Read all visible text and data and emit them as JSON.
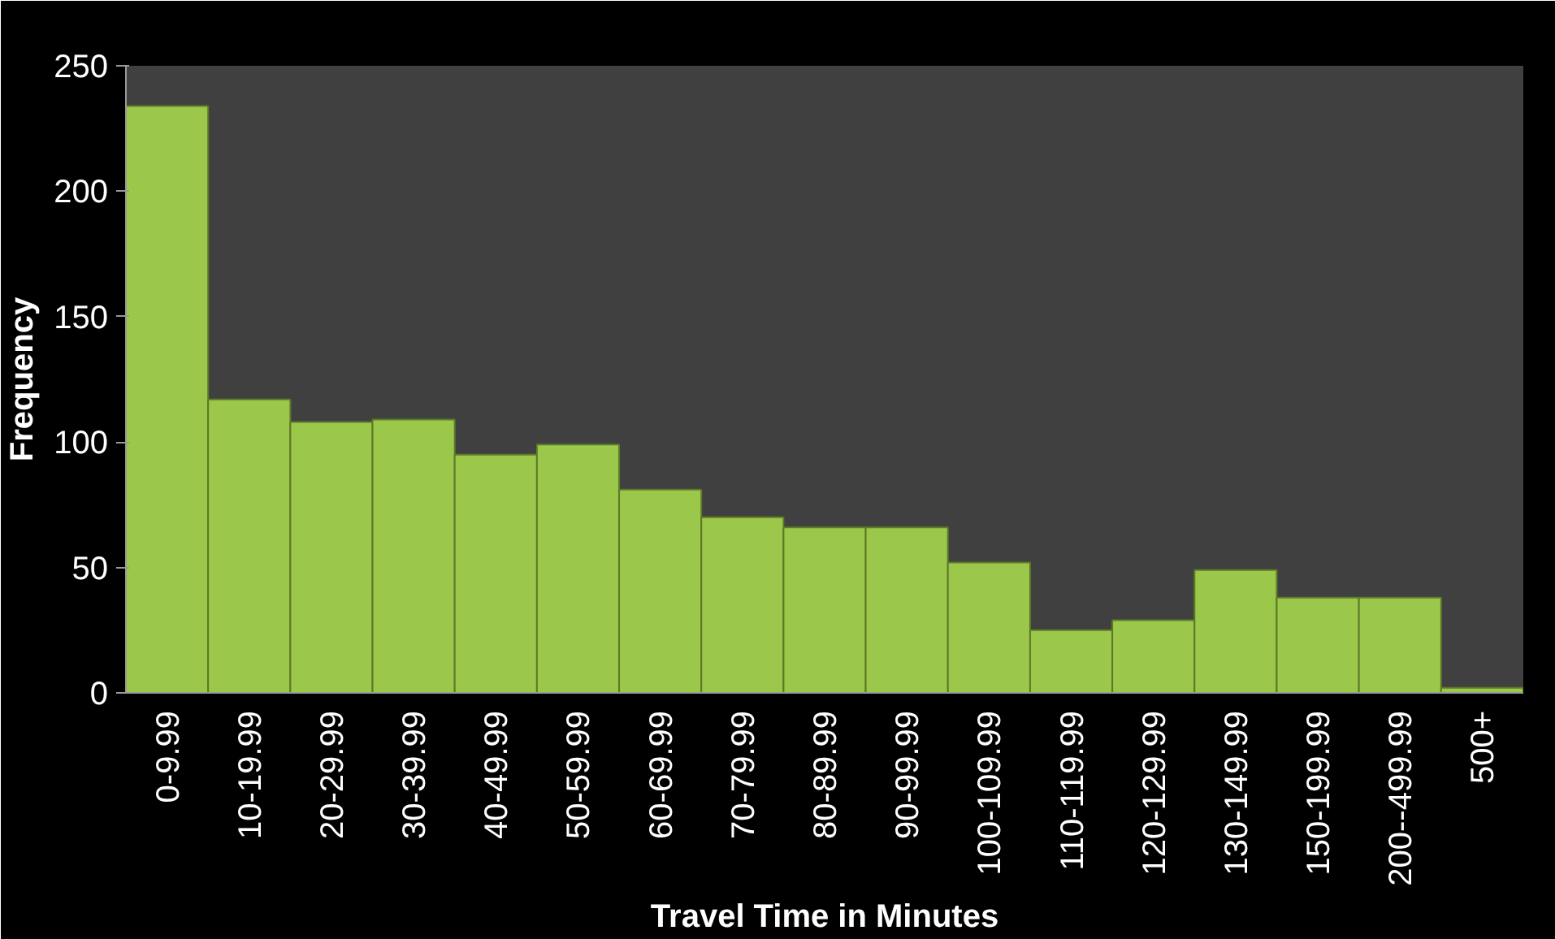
{
  "chart_data": {
    "type": "bar",
    "xlabel": "Travel Time in Minutes",
    "ylabel": "Frequency",
    "categories": [
      "0-9.99",
      "10-19.99",
      "20-29.99",
      "30-39.99",
      "40-49.99",
      "50-59.99",
      "60-69.99",
      "70-79.99",
      "80-89.99",
      "90-99.99",
      "100-109.99",
      "110-119.99",
      "120-129.99",
      "130-149.99",
      "150-199.99",
      "200--499.99",
      "500+"
    ],
    "values": [
      234,
      117,
      108,
      109,
      95,
      99,
      81,
      70,
      66,
      66,
      52,
      25,
      29,
      49,
      38,
      38,
      2
    ],
    "color": "#9bc84a",
    "ylim": [
      0,
      250
    ],
    "yticks": [
      0,
      50,
      100,
      150,
      200,
      250
    ]
  }
}
